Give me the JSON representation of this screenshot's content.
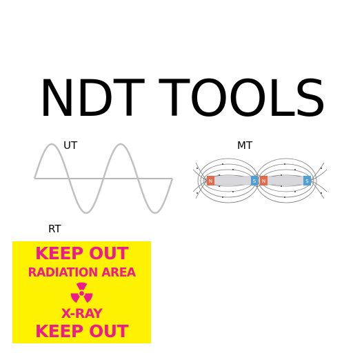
{
  "title": "NDT TOOLS",
  "labels": {
    "ut": "UT",
    "mt": "MT",
    "rt": "RT"
  },
  "magnet": {
    "pole_n": "N",
    "pole_s": "S"
  },
  "sign": {
    "line1": "KEEP OUT",
    "line2": "RADIATION AREA",
    "line3": "X-RAY",
    "line4": "KEEP OUT",
    "icon": "radiation-trefoil-icon"
  },
  "colors": {
    "sign_background": "#fff200",
    "sign_text": "#ec1c8c",
    "wave_stroke": "#c0c0c0",
    "pole_n": "#e06a4a",
    "pole_s": "#4f9fd4"
  }
}
